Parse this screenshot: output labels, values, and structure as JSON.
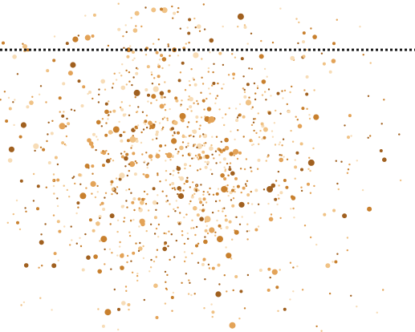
{
  "chart_data": {
    "type": "scatter",
    "title": "",
    "xlabel": "",
    "ylabel": "",
    "xlim": [
      0,
      1
    ],
    "ylim": [
      0,
      1
    ],
    "grid": false,
    "legend": "none",
    "point_count_estimate": 1100,
    "colors": [
      "#a0601f",
      "#c8802e",
      "#e3a358",
      "#f0c285",
      "#f7dcb6"
    ],
    "reference_line": {
      "orientation": "horizontal",
      "y": 0.85,
      "style": "dotted",
      "color": "#1a1a1a"
    },
    "points": [
      [
        0.58,
        0.95,
        4,
        0
      ],
      [
        0.33,
        0.96,
        3,
        3
      ],
      [
        0.37,
        0.97,
        3,
        3
      ],
      [
        0.42,
        0.96,
        2,
        4
      ],
      [
        0.06,
        0.86,
        3,
        3
      ],
      [
        0.42,
        0.85,
        3,
        1
      ],
      [
        0.63,
        0.83,
        3,
        1
      ],
      [
        0.31,
        0.85,
        3,
        1
      ],
      [
        0.17,
        0.78,
        3,
        2
      ],
      [
        0.33,
        0.72,
        4,
        0
      ],
      [
        0.37,
        0.71,
        3,
        1
      ],
      [
        0.39,
        0.68,
        3,
        2
      ],
      [
        0.51,
        0.64,
        4,
        2
      ],
      [
        0.64,
        0.61,
        3,
        3
      ],
      [
        0.15,
        0.62,
        4,
        2
      ],
      [
        0.28,
        0.61,
        4,
        1
      ],
      [
        0.75,
        0.51,
        4,
        0
      ],
      [
        0.65,
        0.43,
        4,
        0
      ],
      [
        0.2,
        0.41,
        4,
        1
      ],
      [
        0.27,
        0.35,
        3,
        0
      ],
      [
        0.5,
        0.34,
        4,
        3
      ],
      [
        0.57,
        0.3,
        3,
        1
      ],
      [
        0.25,
        0.28,
        4,
        1
      ],
      [
        0.53,
        0.28,
        4,
        1
      ],
      [
        0.1,
        0.27,
        3,
        0
      ],
      [
        0.26,
        0.06,
        4,
        1
      ],
      [
        0.56,
        0.02,
        4,
        2
      ],
      [
        0.83,
        0.35,
        3,
        0
      ],
      [
        0.89,
        0.37,
        3,
        1
      ],
      [
        0.79,
        0.2,
        3,
        3
      ],
      [
        0.13,
        0.2,
        3,
        0
      ],
      [
        0.54,
        0.43,
        4,
        1
      ],
      [
        0.32,
        0.58,
        4,
        3
      ],
      [
        0.38,
        0.53,
        3,
        2
      ],
      [
        0.21,
        0.5,
        3,
        1
      ],
      [
        0.44,
        0.65,
        4,
        1
      ]
    ],
    "density_model": {
      "seed": 17,
      "count": 1100,
      "center_x": 0.43,
      "center_y": 0.52,
      "spread_x": 0.2,
      "spread_y": 0.3,
      "x_min": 0.0,
      "x_max": 0.97,
      "y_min": 0.0,
      "y_max": 0.99
    }
  }
}
